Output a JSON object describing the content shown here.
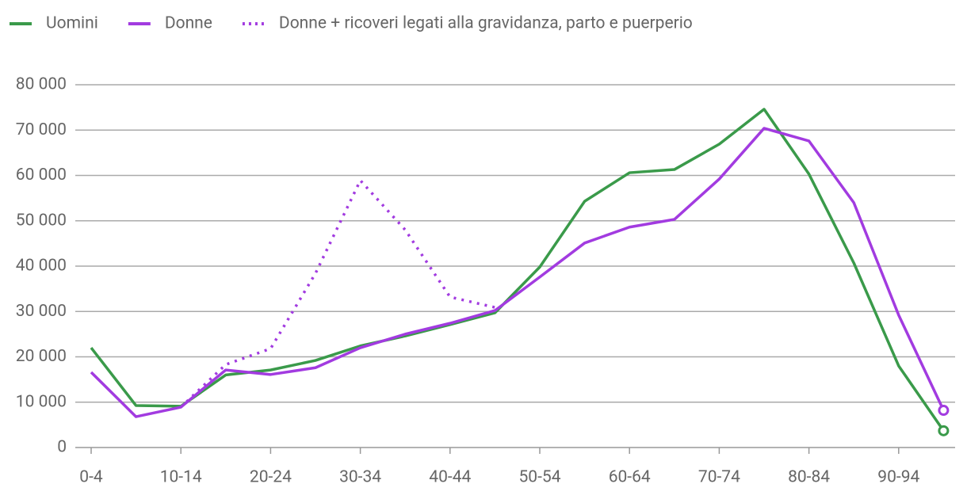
{
  "chart_data": {
    "type": "line",
    "categories": [
      "0-4",
      null,
      "10-14",
      null,
      "20-24",
      null,
      "30-34",
      null,
      "40-44",
      null,
      "50-54",
      null,
      "60-64",
      null,
      "70-74",
      null,
      "80-84",
      null,
      "90-94",
      null
    ],
    "series": [
      {
        "name": "Uomini",
        "color": "#3a9a4a",
        "style": "solid",
        "values": [
          22000,
          9250,
          9100,
          16000,
          17100,
          19200,
          22400,
          24600,
          27100,
          29700,
          39800,
          54300,
          60600,
          61300,
          66900,
          74600,
          60300,
          40700,
          18000,
          3700
        ]
      },
      {
        "name": "Donne",
        "color": "#a23be0",
        "style": "solid",
        "values": [
          16600,
          6800,
          8900,
          17100,
          16100,
          17600,
          22000,
          25000,
          27400,
          30200,
          37600,
          45100,
          48600,
          50300,
          59200,
          70400,
          67600,
          54000,
          29200,
          8200
        ]
      },
      {
        "name": "Donne + ricoveri legati alla gravidanza, parto e puerperio",
        "color": "#a23be0",
        "style": "dotted",
        "values": [
          null,
          null,
          8900,
          18300,
          21800,
          38400,
          58900,
          48000,
          33200,
          30900,
          null,
          null,
          null,
          null,
          null,
          null,
          null,
          null,
          null,
          null
        ]
      }
    ],
    "ylim": [
      0,
      80000
    ],
    "yticks": [
      0,
      {
        "value": 10000,
        "label": "10 000"
      },
      {
        "value": 20000,
        "label": "20 000"
      },
      {
        "value": 30000,
        "label": "30 000"
      },
      {
        "value": 40000,
        "label": "40 000"
      },
      {
        "value": 50000,
        "label": "50 000"
      },
      {
        "value": 60000,
        "label": "60 000"
      },
      {
        "value": 70000,
        "label": "70 000"
      },
      {
        "value": 80000,
        "label": "80 000"
      }
    ],
    "grid": true,
    "legend": "top-left"
  }
}
